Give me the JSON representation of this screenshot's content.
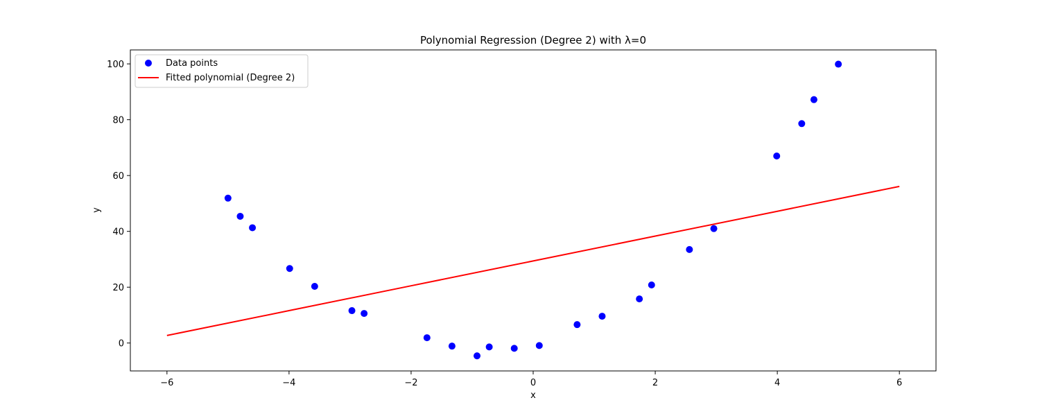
{
  "chart_data": {
    "type": "scatter",
    "title": "Polynomial Regression (Degree 2) with λ=0",
    "xlabel": "x",
    "ylabel": "y",
    "xlim": [
      -6.6,
      6.6
    ],
    "ylim": [
      -10,
      105
    ],
    "xticks": [
      -6,
      -4,
      -2,
      0,
      2,
      4,
      6
    ],
    "xtick_labels": [
      "−6",
      "−4",
      "−2",
      "0",
      "2",
      "4",
      "6"
    ],
    "yticks": [
      0,
      20,
      40,
      60,
      80,
      100
    ],
    "ytick_labels": [
      "0",
      "20",
      "40",
      "60",
      "80",
      "100"
    ],
    "grid": false,
    "legend_position": "top-left",
    "series": [
      {
        "name": "Data points",
        "kind": "scatter",
        "color": "#0000ff",
        "points": [
          {
            "x": -5.0,
            "y": 51.9
          },
          {
            "x": -4.8,
            "y": 45.4
          },
          {
            "x": -4.6,
            "y": 41.3
          },
          {
            "x": -3.99,
            "y": 26.7
          },
          {
            "x": -3.58,
            "y": 20.3
          },
          {
            "x": -2.97,
            "y": 11.6
          },
          {
            "x": -2.77,
            "y": 10.6
          },
          {
            "x": -1.74,
            "y": 1.9
          },
          {
            "x": -1.33,
            "y": -1.1
          },
          {
            "x": -0.92,
            "y": -4.6
          },
          {
            "x": -0.72,
            "y": -1.4
          },
          {
            "x": -0.31,
            "y": -1.9
          },
          {
            "x": 0.1,
            "y": -0.9
          },
          {
            "x": 0.72,
            "y": 6.6
          },
          {
            "x": 1.13,
            "y": 9.6
          },
          {
            "x": 1.74,
            "y": 15.8
          },
          {
            "x": 1.94,
            "y": 20.8
          },
          {
            "x": 2.56,
            "y": 33.5
          },
          {
            "x": 2.96,
            "y": 41.0
          },
          {
            "x": 3.99,
            "y": 67.0
          },
          {
            "x": 4.4,
            "y": 78.6
          },
          {
            "x": 4.6,
            "y": 87.2
          },
          {
            "x": 5.0,
            "y": 99.9
          }
        ]
      },
      {
        "name": "Fitted polynomial (Degree 2)",
        "kind": "line",
        "color": "#ff0000",
        "points": [
          {
            "x": -6,
            "y": 2.7
          },
          {
            "x": -4,
            "y": 11.6
          },
          {
            "x": -2,
            "y": 20.5
          },
          {
            "x": 0,
            "y": 29.4
          },
          {
            "x": 2,
            "y": 38.3
          },
          {
            "x": 4,
            "y": 47.2
          },
          {
            "x": 6,
            "y": 56.1
          }
        ]
      }
    ]
  }
}
